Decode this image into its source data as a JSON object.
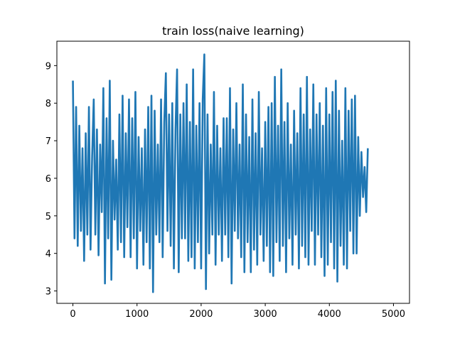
{
  "chart_data": {
    "type": "line",
    "title": "train loss(naive learning)",
    "xlabel": "",
    "ylabel": "",
    "xlim": [
      -250,
      5250
    ],
    "ylim": [
      2.67,
      9.65
    ],
    "x_ticks": [
      0,
      1000,
      2000,
      3000,
      4000,
      5000
    ],
    "x_tick_labels": [
      "0",
      "1000",
      "2000",
      "3000",
      "4000",
      "5000"
    ],
    "y_ticks": [
      3,
      4,
      5,
      6,
      7,
      8,
      9
    ],
    "y_tick_labels": [
      "3",
      "4",
      "5",
      "6",
      "7",
      "8",
      "9"
    ],
    "grid": false,
    "legend": "none",
    "series_color": "#1f77b4",
    "series": [
      {
        "x_start": 0,
        "x_step": 25,
        "values": [
          8.6,
          4.4,
          7.9,
          4.2,
          7.4,
          4.6,
          6.8,
          3.8,
          7.2,
          4.5,
          7.9,
          4.1,
          6.6,
          8.1,
          4.5,
          7.3,
          3.95,
          6.9,
          5.1,
          8.4,
          3.2,
          7.6,
          4.4,
          8.6,
          3.3,
          7.0,
          4.9,
          6.5,
          4.1,
          7.7,
          4.3,
          8.2,
          3.9,
          7.2,
          4.7,
          8.1,
          3.9,
          7.6,
          4.4,
          8.3,
          3.6,
          7.1,
          4.6,
          6.8,
          3.7,
          7.3,
          4.3,
          7.9,
          3.6,
          8.2,
          2.97,
          7.8,
          4.5,
          6.9,
          4.3,
          8.1,
          3.9,
          7.5,
          8.8,
          4.6,
          7.7,
          4.2,
          8.0,
          3.6,
          7.3,
          8.9,
          3.5,
          7.7,
          4.4,
          8.0,
          4.4,
          8.5,
          3.8,
          7.5,
          3.9,
          8.9,
          3.6,
          7.4,
          4.3,
          8.0,
          3.6,
          8.1,
          9.3,
          3.05,
          7.7,
          4.0,
          6.9,
          4.5,
          8.3,
          3.7,
          7.4,
          4.5,
          6.8,
          3.8,
          7.6,
          4.5,
          7.6,
          3.9,
          8.4,
          3.2,
          7.3,
          4.6,
          8.0,
          4.4,
          6.9,
          3.9,
          8.5,
          3.5,
          7.7,
          4.3,
          7.1,
          3.5,
          8.1,
          4.1,
          7.2,
          3.7,
          8.3,
          4.5,
          6.8,
          3.8,
          7.5,
          4.2,
          7.9,
          3.5,
          8.0,
          3.4,
          8.7,
          4.3,
          7.4,
          3.8,
          8.9,
          4.2,
          7.5,
          3.5,
          8.0,
          4.4,
          6.9,
          3.7,
          7.8,
          4.5,
          7.2,
          3.6,
          8.4,
          4.2,
          7.7,
          3.9,
          8.7,
          3.7,
          7.3,
          4.6,
          8.5,
          3.7,
          7.7,
          4.5,
          8.0,
          3.9,
          7.4,
          3.4,
          8.4,
          3.7,
          7.7,
          4.3,
          8.3,
          3.6,
          8.6,
          3.25,
          7.8,
          4.2,
          7.0,
          3.7,
          8.4,
          3.6,
          7.8,
          4.6,
          8.1,
          4.0,
          8.2,
          4.0,
          7.1,
          5.0,
          6.7,
          5.5,
          6.3,
          5.1,
          6.8
        ]
      }
    ]
  }
}
